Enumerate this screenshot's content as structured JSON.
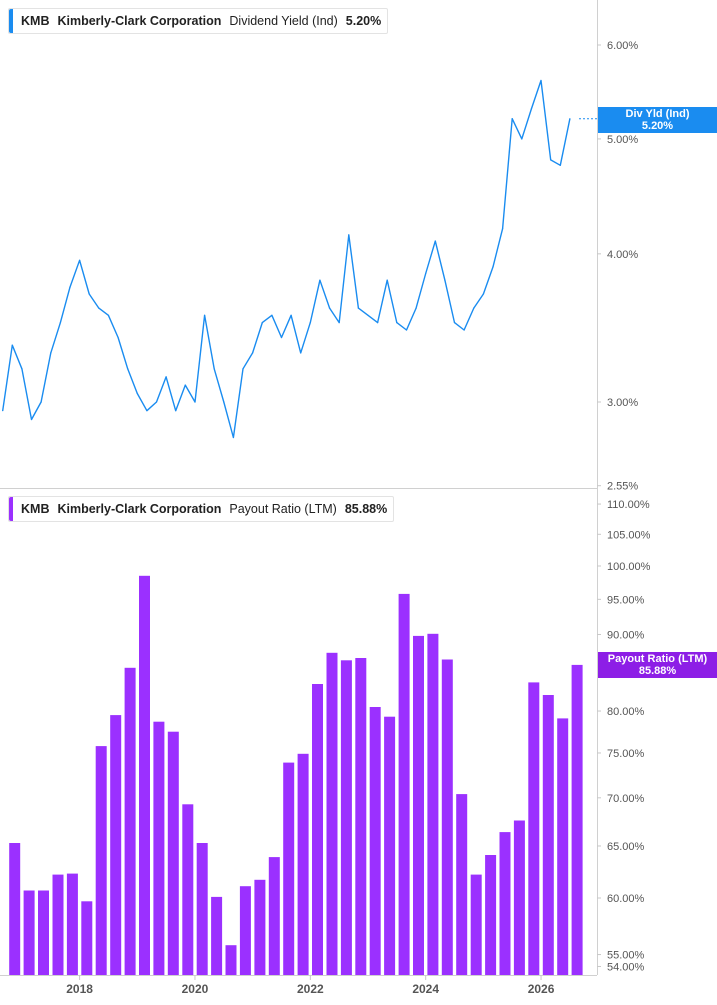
{
  "chart_data": [
    {
      "type": "line",
      "ticker": "KMB",
      "company": "Kimberly-Clark Corporation",
      "metric": "Dividend Yield (Ind)",
      "current_value": "5.20%",
      "tag_title": "Div Yld (Ind)",
      "tag_value": "5.20%",
      "y_scale": "log",
      "ylim": [
        2.55,
        6.4
      ],
      "y_ticks": [
        "6.00%",
        "5.00%",
        "4.00%",
        "3.00%",
        "2.55%"
      ],
      "y_tick_values": [
        6.0,
        5.0,
        4.0,
        3.0,
        2.55
      ],
      "color": "#1a8cf0",
      "x": [
        "2016-09",
        "2016-11",
        "2017-01",
        "2017-03",
        "2017-05",
        "2017-07",
        "2017-09",
        "2017-11",
        "2018-01",
        "2018-03",
        "2018-05",
        "2018-07",
        "2018-09",
        "2018-11",
        "2019-01",
        "2019-03",
        "2019-05",
        "2019-07",
        "2019-09",
        "2019-11",
        "2020-01",
        "2020-03",
        "2020-05",
        "2020-07",
        "2020-09",
        "2020-11",
        "2021-01",
        "2021-03",
        "2021-05",
        "2021-07",
        "2021-09",
        "2021-11",
        "2022-01",
        "2022-03",
        "2022-05",
        "2022-07",
        "2022-09",
        "2022-11",
        "2023-01",
        "2023-03",
        "2023-05",
        "2023-07",
        "2023-09",
        "2023-11",
        "2024-01",
        "2024-03",
        "2024-05",
        "2024-07",
        "2024-09",
        "2024-11",
        "2025-01",
        "2025-03",
        "2025-05",
        "2025-07",
        "2025-09",
        "2025-11",
        "2026-01",
        "2026-03",
        "2026-05",
        "2026-07"
      ],
      "y": [
        2.95,
        3.35,
        3.2,
        2.9,
        3.0,
        3.3,
        3.5,
        3.75,
        3.95,
        3.7,
        3.6,
        3.55,
        3.4,
        3.2,
        3.05,
        2.95,
        3.0,
        3.15,
        2.95,
        3.1,
        3.0,
        3.55,
        3.2,
        3.0,
        2.8,
        3.2,
        3.3,
        3.5,
        3.55,
        3.4,
        3.55,
        3.3,
        3.5,
        3.8,
        3.6,
        3.5,
        4.15,
        3.6,
        3.55,
        3.5,
        3.8,
        3.5,
        3.45,
        3.6,
        3.85,
        4.1,
        3.8,
        3.5,
        3.45,
        3.6,
        3.7,
        3.9,
        4.2,
        5.2,
        5.0,
        5.3,
        5.6,
        4.8,
        4.75,
        5.2
      ]
    },
    {
      "type": "bar",
      "ticker": "KMB",
      "company": "Kimberly-Clark Corporation",
      "metric": "Payout Ratio (LTM)",
      "current_value": "85.88%",
      "tag_title": "Payout Ratio (LTM)",
      "tag_value": "85.88%",
      "y_scale": "log",
      "ylim": [
        54.0,
        110.0
      ],
      "y_ticks": [
        "110.00%",
        "105.00%",
        "100.00%",
        "95.00%",
        "90.00%",
        "80.00%",
        "75.00%",
        "70.00%",
        "65.00%",
        "60.00%",
        "55.00%",
        "54.00%"
      ],
      "y_tick_values": [
        110,
        105,
        100,
        95,
        90,
        80,
        75,
        70,
        65,
        60,
        55,
        54
      ],
      "color": "#9b30ff",
      "x_ticks": [
        "2018",
        "2020",
        "2022",
        "2024",
        "2026"
      ],
      "categories": [
        "2016 Q4",
        "2017 Q1",
        "2017 Q2",
        "2017 Q3",
        "2017 Q4",
        "2018 Q1",
        "2018 Q2",
        "2018 Q3",
        "2018 Q4",
        "2019 Q1",
        "2019 Q2",
        "2019 Q3",
        "2019 Q4",
        "2020 Q1",
        "2020 Q2",
        "2020 Q3",
        "2020 Q4",
        "2021 Q1",
        "2021 Q2",
        "2021 Q3",
        "2021 Q4",
        "2022 Q1",
        "2022 Q2",
        "2022 Q3",
        "2022 Q4",
        "2023 Q1",
        "2023 Q2",
        "2023 Q3",
        "2023 Q4",
        "2024 Q1",
        "2024 Q2",
        "2024 Q3",
        "2024 Q4",
        "2025 Q1",
        "2025 Q2",
        "2025 Q3",
        "2025 Q4",
        "2026 Q1",
        "2026 Q2",
        "2026 Q3"
      ],
      "values": [
        65.3,
        60.7,
        60.7,
        62.2,
        62.3,
        59.7,
        75.8,
        79.5,
        85.5,
        98.5,
        78.7,
        77.5,
        69.3,
        65.3,
        60.1,
        55.8,
        61.1,
        61.7,
        63.9,
        73.9,
        74.9,
        83.4,
        87.5,
        86.5,
        86.8,
        80.5,
        79.3,
        95.8,
        89.8,
        90.1,
        86.6,
        70.4,
        62.2,
        64.1,
        66.4,
        67.6,
        83.6,
        82.0,
        79.1,
        85.88
      ]
    }
  ]
}
